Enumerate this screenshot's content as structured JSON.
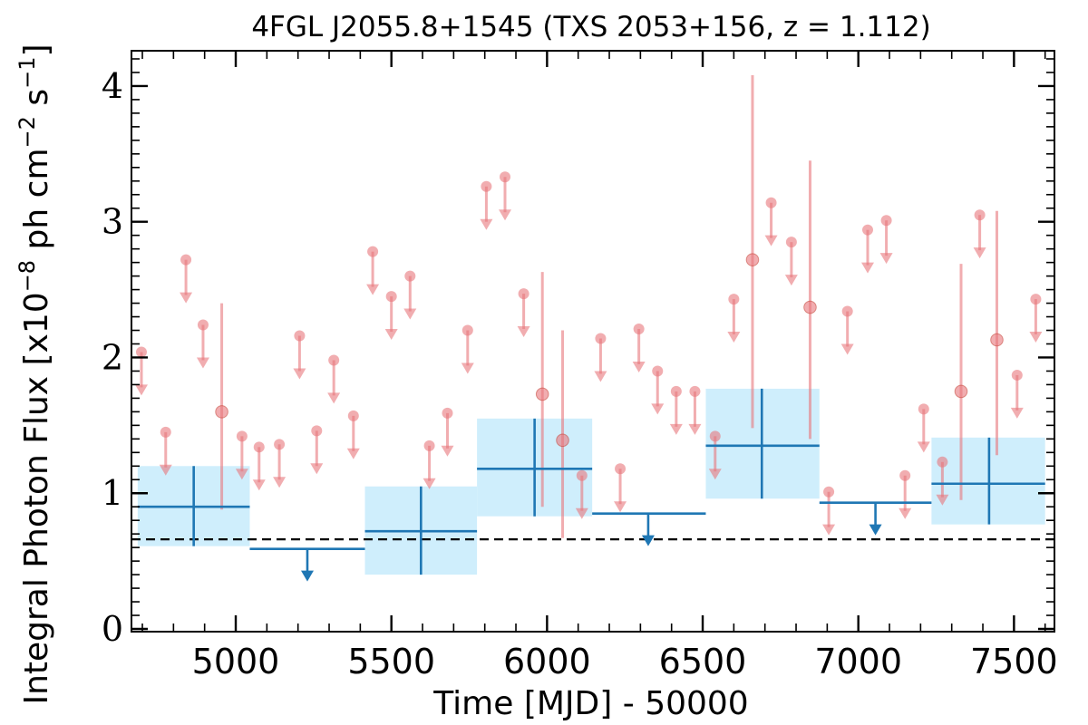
{
  "chart_data": {
    "type": "scatter",
    "title": "4FGL J2055.8+1545 (TXS 2053+156, z = 1.112)",
    "xlabel": "Time [MJD] - 50000",
    "ylabel": "Integral Photon Flux [x10^-8 ph cm^-2 s^-1]",
    "xlim": [
      4665,
      7630
    ],
    "ylim": [
      -0.02,
      4.26
    ],
    "x_ticks": [
      {
        "value": 5000,
        "label": "5000"
      },
      {
        "value": 5500,
        "label": "5500"
      },
      {
        "value": 6000,
        "label": "6000"
      },
      {
        "value": 6500,
        "label": "6500"
      },
      {
        "value": 7000,
        "label": "7000"
      },
      {
        "value": 7500,
        "label": "7500"
      }
    ],
    "y_ticks": [
      {
        "value": 0,
        "label": "0"
      },
      {
        "value": 1,
        "label": "1"
      },
      {
        "value": 2,
        "label": "2"
      },
      {
        "value": 3,
        "label": "3"
      },
      {
        "value": 4,
        "label": "4"
      }
    ],
    "reference_line": {
      "style": "dashed",
      "color": "#000000",
      "value": 0.66
    },
    "colors": {
      "short_bins": "#e8777b",
      "long_bins": "#1f77b4",
      "long_bins_band": "#cfeefc"
    },
    "series": [
      {
        "role": "short time bins",
        "color": "#e8777b",
        "detections": [
          {
            "x": 4955,
            "y": 1.6,
            "ylo": 0.88,
            "yhi": 2.4
          },
          {
            "x": 5985,
            "y": 1.73,
            "ylo": 0.9,
            "yhi": 2.63
          },
          {
            "x": 6050,
            "y": 1.39,
            "ylo": 0.67,
            "yhi": 2.2
          },
          {
            "x": 6660,
            "y": 2.72,
            "ylo": 1.48,
            "yhi": 4.08
          },
          {
            "x": 6845,
            "y": 2.37,
            "ylo": 1.4,
            "yhi": 3.45
          },
          {
            "x": 7330,
            "y": 1.75,
            "ylo": 0.95,
            "yhi": 2.69
          },
          {
            "x": 7445,
            "y": 2.13,
            "ylo": 1.28,
            "yhi": 3.08
          }
        ],
        "upper_limits": [
          {
            "x": 4697,
            "y": 2.04
          },
          {
            "x": 4775,
            "y": 1.45
          },
          {
            "x": 4840,
            "y": 2.72
          },
          {
            "x": 4895,
            "y": 2.24
          },
          {
            "x": 5020,
            "y": 1.42
          },
          {
            "x": 5075,
            "y": 1.34
          },
          {
            "x": 5140,
            "y": 1.36
          },
          {
            "x": 5205,
            "y": 2.16
          },
          {
            "x": 5260,
            "y": 1.46
          },
          {
            "x": 5315,
            "y": 1.98
          },
          {
            "x": 5378,
            "y": 1.57
          },
          {
            "x": 5440,
            "y": 2.78
          },
          {
            "x": 5500,
            "y": 2.45
          },
          {
            "x": 5560,
            "y": 2.6
          },
          {
            "x": 5622,
            "y": 1.35
          },
          {
            "x": 5680,
            "y": 1.59
          },
          {
            "x": 5745,
            "y": 2.2
          },
          {
            "x": 5805,
            "y": 3.26
          },
          {
            "x": 5865,
            "y": 3.33
          },
          {
            "x": 5925,
            "y": 2.47
          },
          {
            "x": 6112,
            "y": 1.13
          },
          {
            "x": 6172,
            "y": 2.14
          },
          {
            "x": 6235,
            "y": 1.18
          },
          {
            "x": 6295,
            "y": 2.21
          },
          {
            "x": 6355,
            "y": 1.9
          },
          {
            "x": 6415,
            "y": 1.75
          },
          {
            "x": 6475,
            "y": 1.75
          },
          {
            "x": 6540,
            "y": 1.42
          },
          {
            "x": 6600,
            "y": 2.43
          },
          {
            "x": 6720,
            "y": 3.14
          },
          {
            "x": 6785,
            "y": 2.85
          },
          {
            "x": 6905,
            "y": 1.01
          },
          {
            "x": 6965,
            "y": 2.34
          },
          {
            "x": 7030,
            "y": 2.94
          },
          {
            "x": 7090,
            "y": 3.01
          },
          {
            "x": 7150,
            "y": 1.13
          },
          {
            "x": 7210,
            "y": 1.62
          },
          {
            "x": 7270,
            "y": 1.23
          },
          {
            "x": 7390,
            "y": 3.05
          },
          {
            "x": 7510,
            "y": 1.87
          },
          {
            "x": 7570,
            "y": 2.43
          }
        ]
      },
      {
        "role": "long time bins",
        "color": "#1f77b4",
        "detections": [
          {
            "x": 4865,
            "x_lo": 4685,
            "x_hi": 5045,
            "y": 0.9,
            "ylo": 0.61,
            "yhi": 1.2
          },
          {
            "x": 5595,
            "x_lo": 5415,
            "x_hi": 5775,
            "y": 0.72,
            "ylo": 0.4,
            "yhi": 1.05
          },
          {
            "x": 5960,
            "x_lo": 5775,
            "x_hi": 6145,
            "y": 1.18,
            "ylo": 0.83,
            "yhi": 1.55
          },
          {
            "x": 6690,
            "x_lo": 6510,
            "x_hi": 6875,
            "y": 1.35,
            "ylo": 0.96,
            "yhi": 1.77
          },
          {
            "x": 7420,
            "x_lo": 7235,
            "x_hi": 7600,
            "y": 1.07,
            "ylo": 0.77,
            "yhi": 1.41
          }
        ],
        "upper_limits": [
          {
            "x": 5230,
            "x_lo": 5045,
            "x_hi": 5415,
            "y": 0.59
          },
          {
            "x": 6325,
            "x_lo": 6145,
            "x_hi": 6510,
            "y": 0.85
          },
          {
            "x": 7055,
            "x_lo": 6875,
            "x_hi": 7235,
            "y": 0.93
          }
        ]
      }
    ]
  }
}
